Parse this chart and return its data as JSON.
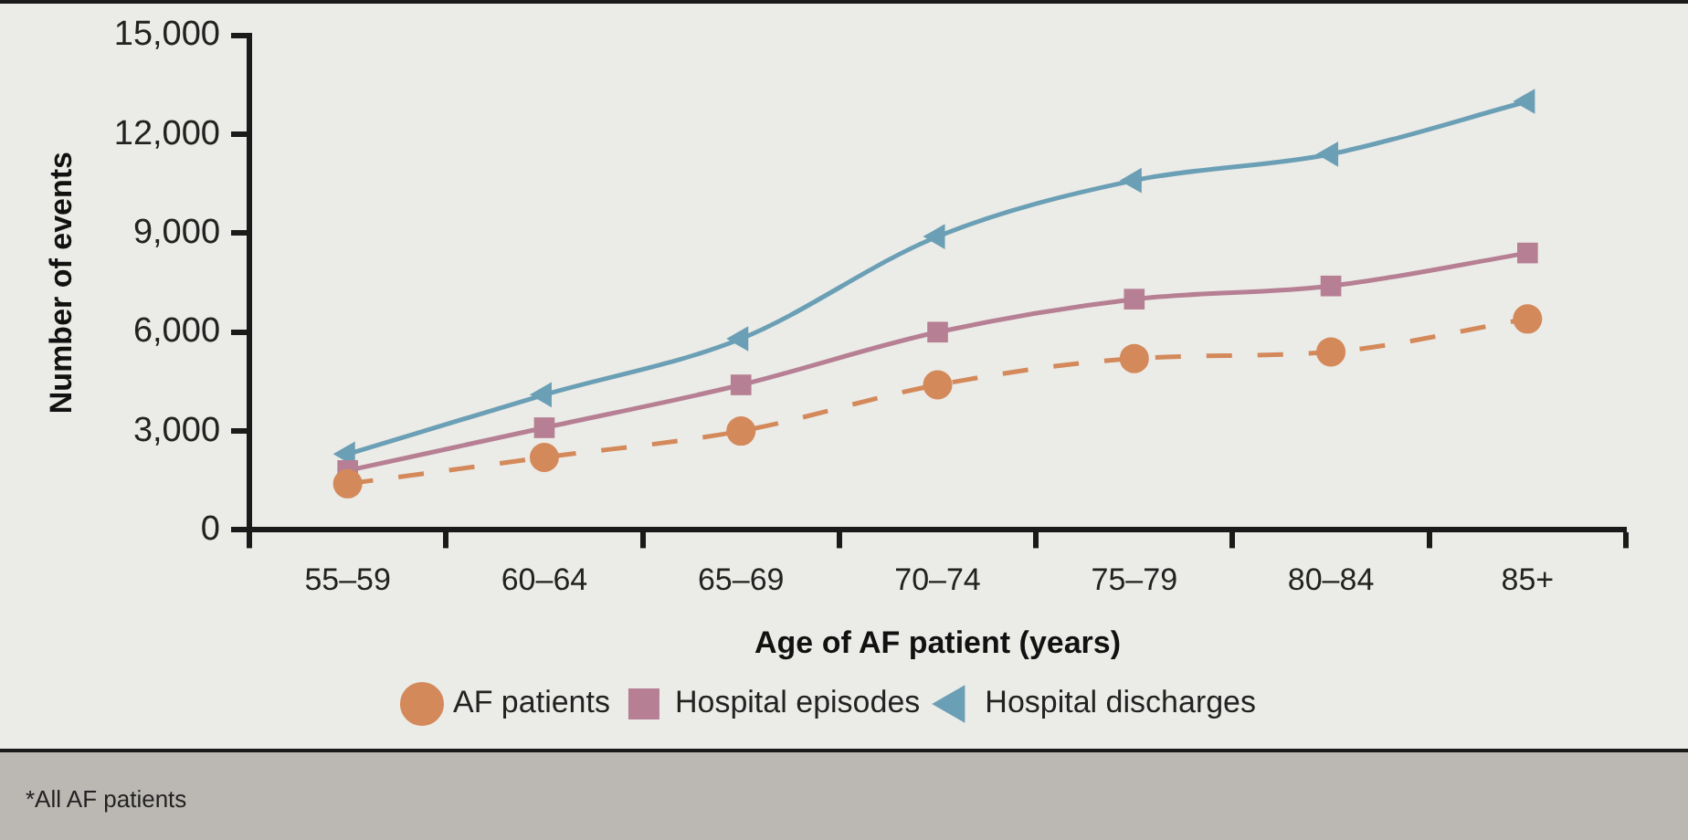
{
  "chart_data": {
    "type": "line",
    "xlabel": "Age of AF patient (years)",
    "ylabel": "Number of events",
    "categories": [
      "55–59",
      "60–64",
      "65–69",
      "70–74",
      "75–79",
      "80–84",
      "85+"
    ],
    "series": [
      {
        "name": "AF patients",
        "color": "#d4895a",
        "marker": "circle",
        "line_style": "dashed",
        "values": [
          1400,
          2200,
          3000,
          4400,
          5200,
          5400,
          6400
        ]
      },
      {
        "name": "Hospital episodes",
        "color": "#b67f93",
        "marker": "square",
        "line_style": "solid",
        "values": [
          1800,
          3100,
          4400,
          6000,
          7000,
          7400,
          8400
        ]
      },
      {
        "name": "Hospital discharges",
        "color": "#6a9fb5",
        "marker": "triangle",
        "line_style": "solid",
        "values": [
          2300,
          4100,
          5800,
          8900,
          10600,
          11400,
          13000
        ]
      }
    ],
    "ylim": [
      0,
      15000
    ],
    "yticks": [
      0,
      {
        "value": 3000,
        "label": "3,000"
      },
      {
        "value": 6000,
        "label": "6,000"
      },
      {
        "value": 9000,
        "label": "9,000"
      },
      {
        "value": 12000,
        "label": "12,000"
      },
      {
        "value": 15000,
        "label": "15,000"
      }
    ],
    "grid": false,
    "legend": "bottom",
    "annotations": [
      "*All AF patients"
    ]
  }
}
